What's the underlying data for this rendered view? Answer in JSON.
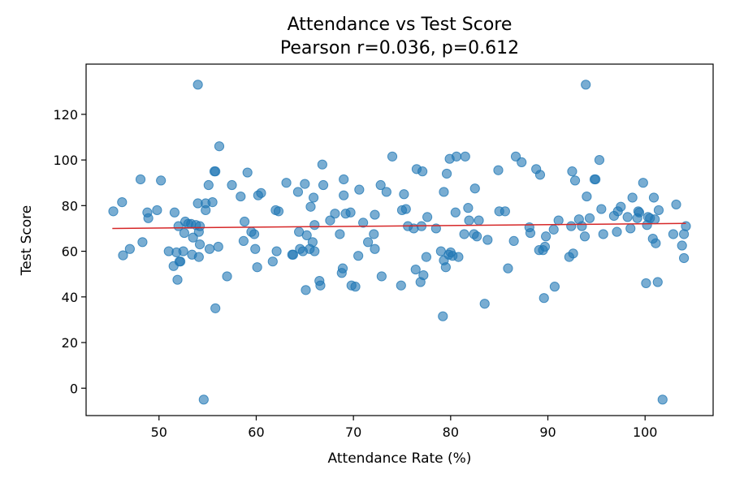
{
  "chart_data": {
    "type": "scatter",
    "title": "Attendance vs Test Score",
    "subtitle": "Pearson r=0.036, p=0.612",
    "xlabel": "Attendance Rate (%)",
    "ylabel": "Test Score",
    "xlim": [
      42.5,
      107.0
    ],
    "ylim": [
      -12,
      142
    ],
    "xticks": [
      50,
      60,
      70,
      80,
      90,
      100
    ],
    "yticks": [
      0,
      20,
      40,
      60,
      80,
      100,
      120
    ],
    "grid": false,
    "legend": "none",
    "point_color": "#1f77b4",
    "trend_color": "#d62728",
    "trendline": {
      "x": [
        45.2,
        104.2
      ],
      "y": [
        70.0,
        72.2
      ]
    },
    "points": [
      {
        "x": 45.3,
        "y": 77.5
      },
      {
        "x": 46.2,
        "y": 81.5
      },
      {
        "x": 46.3,
        "y": 58.2
      },
      {
        "x": 47.0,
        "y": 61.0
      },
      {
        "x": 48.1,
        "y": 91.5
      },
      {
        "x": 48.3,
        "y": 64.0
      },
      {
        "x": 48.8,
        "y": 77.0
      },
      {
        "x": 48.9,
        "y": 74.5
      },
      {
        "x": 49.8,
        "y": 78.0
      },
      {
        "x": 50.2,
        "y": 91.0
      },
      {
        "x": 51.0,
        "y": 60.0
      },
      {
        "x": 51.5,
        "y": 53.5
      },
      {
        "x": 51.6,
        "y": 77.0
      },
      {
        "x": 51.8,
        "y": 59.5
      },
      {
        "x": 51.9,
        "y": 47.5
      },
      {
        "x": 52.0,
        "y": 71.0
      },
      {
        "x": 52.1,
        "y": 55.5
      },
      {
        "x": 52.2,
        "y": 55.5
      },
      {
        "x": 52.5,
        "y": 60.0
      },
      {
        "x": 52.6,
        "y": 68.0
      },
      {
        "x": 52.7,
        "y": 73.0
      },
      {
        "x": 53.0,
        "y": 72.0
      },
      {
        "x": 53.3,
        "y": 72.0
      },
      {
        "x": 53.4,
        "y": 58.5
      },
      {
        "x": 53.5,
        "y": 66.0
      },
      {
        "x": 53.8,
        "y": 71.5
      },
      {
        "x": 54.0,
        "y": 81.0
      },
      {
        "x": 54.0,
        "y": 133.0
      },
      {
        "x": 54.1,
        "y": 68.5
      },
      {
        "x": 54.1,
        "y": 57.5
      },
      {
        "x": 54.2,
        "y": 63.0
      },
      {
        "x": 54.2,
        "y": 71.0
      },
      {
        "x": 54.6,
        "y": -5.0
      },
      {
        "x": 54.8,
        "y": 81.0
      },
      {
        "x": 54.8,
        "y": 78.0
      },
      {
        "x": 55.1,
        "y": 89.0
      },
      {
        "x": 55.2,
        "y": 61.0
      },
      {
        "x": 55.5,
        "y": 81.5
      },
      {
        "x": 55.7,
        "y": 95.0
      },
      {
        "x": 55.8,
        "y": 95.0
      },
      {
        "x": 55.8,
        "y": 35.0
      },
      {
        "x": 56.1,
        "y": 62.0
      },
      {
        "x": 56.2,
        "y": 106.0
      },
      {
        "x": 57.0,
        "y": 49.0
      },
      {
        "x": 57.5,
        "y": 89.0
      },
      {
        "x": 58.4,
        "y": 84.0
      },
      {
        "x": 58.7,
        "y": 64.5
      },
      {
        "x": 58.8,
        "y": 73.0
      },
      {
        "x": 59.1,
        "y": 94.5
      },
      {
        "x": 59.5,
        "y": 68.5
      },
      {
        "x": 59.8,
        "y": 67.5
      },
      {
        "x": 59.9,
        "y": 61.0
      },
      {
        "x": 60.1,
        "y": 53.0
      },
      {
        "x": 60.2,
        "y": 84.5
      },
      {
        "x": 60.5,
        "y": 85.5
      },
      {
        "x": 61.7,
        "y": 55.5
      },
      {
        "x": 62.0,
        "y": 78.0
      },
      {
        "x": 62.1,
        "y": 60.0
      },
      {
        "x": 62.3,
        "y": 77.5
      },
      {
        "x": 63.1,
        "y": 90.0
      },
      {
        "x": 63.7,
        "y": 58.5
      },
      {
        "x": 63.8,
        "y": 58.5
      },
      {
        "x": 64.3,
        "y": 86.0
      },
      {
        "x": 64.4,
        "y": 68.5
      },
      {
        "x": 64.5,
        "y": 61.0
      },
      {
        "x": 64.8,
        "y": 60.0
      },
      {
        "x": 65.0,
        "y": 89.5
      },
      {
        "x": 65.1,
        "y": 43.0
      },
      {
        "x": 65.2,
        "y": 67.0
      },
      {
        "x": 65.5,
        "y": 61.0
      },
      {
        "x": 65.6,
        "y": 79.5
      },
      {
        "x": 65.8,
        "y": 64.0
      },
      {
        "x": 65.9,
        "y": 83.5
      },
      {
        "x": 66.0,
        "y": 71.5
      },
      {
        "x": 66.0,
        "y": 60.0
      },
      {
        "x": 66.5,
        "y": 47.0
      },
      {
        "x": 66.6,
        "y": 45.0
      },
      {
        "x": 66.8,
        "y": 98.0
      },
      {
        "x": 66.9,
        "y": 89.0
      },
      {
        "x": 67.6,
        "y": 73.5
      },
      {
        "x": 68.1,
        "y": 76.5
      },
      {
        "x": 68.6,
        "y": 67.5
      },
      {
        "x": 68.8,
        "y": 50.5
      },
      {
        "x": 68.9,
        "y": 52.5
      },
      {
        "x": 69.0,
        "y": 84.5
      },
      {
        "x": 69.0,
        "y": 91.5
      },
      {
        "x": 69.2,
        "y": 76.5
      },
      {
        "x": 69.7,
        "y": 77.0
      },
      {
        "x": 69.8,
        "y": 45.0
      },
      {
        "x": 70.2,
        "y": 44.5
      },
      {
        "x": 70.5,
        "y": 58.0
      },
      {
        "x": 70.6,
        "y": 87.0
      },
      {
        "x": 71.0,
        "y": 72.5
      },
      {
        "x": 71.5,
        "y": 64.0
      },
      {
        "x": 72.1,
        "y": 67.5
      },
      {
        "x": 72.2,
        "y": 76.0
      },
      {
        "x": 72.2,
        "y": 61.0
      },
      {
        "x": 72.8,
        "y": 89.0
      },
      {
        "x": 72.9,
        "y": 49.0
      },
      {
        "x": 73.4,
        "y": 86.0
      },
      {
        "x": 74.0,
        "y": 101.5
      },
      {
        "x": 74.9,
        "y": 45.0
      },
      {
        "x": 75.0,
        "y": 78.0
      },
      {
        "x": 75.2,
        "y": 85.0
      },
      {
        "x": 75.4,
        "y": 78.5
      },
      {
        "x": 75.6,
        "y": 71.0
      },
      {
        "x": 76.2,
        "y": 70.0
      },
      {
        "x": 76.4,
        "y": 52.0
      },
      {
        "x": 76.5,
        "y": 96.0
      },
      {
        "x": 76.9,
        "y": 46.5
      },
      {
        "x": 77.0,
        "y": 71.0
      },
      {
        "x": 77.1,
        "y": 95.0
      },
      {
        "x": 77.2,
        "y": 49.5
      },
      {
        "x": 77.5,
        "y": 57.5
      },
      {
        "x": 77.6,
        "y": 75.0
      },
      {
        "x": 78.5,
        "y": 70.0
      },
      {
        "x": 79.0,
        "y": 60.0
      },
      {
        "x": 79.2,
        "y": 31.5
      },
      {
        "x": 79.3,
        "y": 56.0
      },
      {
        "x": 79.3,
        "y": 86.0
      },
      {
        "x": 79.5,
        "y": 53.0
      },
      {
        "x": 79.6,
        "y": 94.0
      },
      {
        "x": 79.8,
        "y": 58.5
      },
      {
        "x": 79.9,
        "y": 100.5
      },
      {
        "x": 80.0,
        "y": 59.5
      },
      {
        "x": 80.2,
        "y": 58.0
      },
      {
        "x": 80.5,
        "y": 77.0
      },
      {
        "x": 80.6,
        "y": 101.5
      },
      {
        "x": 80.8,
        "y": 57.5
      },
      {
        "x": 81.4,
        "y": 67.5
      },
      {
        "x": 81.5,
        "y": 101.5
      },
      {
        "x": 81.8,
        "y": 79.0
      },
      {
        "x": 81.9,
        "y": 73.5
      },
      {
        "x": 82.4,
        "y": 67.5
      },
      {
        "x": 82.5,
        "y": 87.5
      },
      {
        "x": 82.7,
        "y": 66.5
      },
      {
        "x": 82.9,
        "y": 73.5
      },
      {
        "x": 83.5,
        "y": 37.0
      },
      {
        "x": 83.8,
        "y": 65.0
      },
      {
        "x": 84.9,
        "y": 95.5
      },
      {
        "x": 85.0,
        "y": 77.5
      },
      {
        "x": 85.6,
        "y": 77.5
      },
      {
        "x": 85.9,
        "y": 52.5
      },
      {
        "x": 86.5,
        "y": 64.5
      },
      {
        "x": 86.7,
        "y": 101.5
      },
      {
        "x": 87.3,
        "y": 99.0
      },
      {
        "x": 88.1,
        "y": 70.5
      },
      {
        "x": 88.2,
        "y": 68.0
      },
      {
        "x": 88.8,
        "y": 96.0
      },
      {
        "x": 89.1,
        "y": 60.5
      },
      {
        "x": 89.2,
        "y": 93.5
      },
      {
        "x": 89.5,
        "y": 60.5
      },
      {
        "x": 89.6,
        "y": 39.5
      },
      {
        "x": 89.7,
        "y": 62.0
      },
      {
        "x": 89.8,
        "y": 66.5
      },
      {
        "x": 90.6,
        "y": 69.5
      },
      {
        "x": 90.7,
        "y": 44.5
      },
      {
        "x": 91.1,
        "y": 73.5
      },
      {
        "x": 92.2,
        "y": 57.5
      },
      {
        "x": 92.4,
        "y": 71.0
      },
      {
        "x": 92.5,
        "y": 95.0
      },
      {
        "x": 92.6,
        "y": 59.0
      },
      {
        "x": 92.8,
        "y": 91.0
      },
      {
        "x": 93.2,
        "y": 74.0
      },
      {
        "x": 93.5,
        "y": 71.0
      },
      {
        "x": 93.8,
        "y": 66.5
      },
      {
        "x": 93.9,
        "y": 133.0
      },
      {
        "x": 94.0,
        "y": 84.0
      },
      {
        "x": 94.3,
        "y": 74.5
      },
      {
        "x": 94.8,
        "y": 91.5
      },
      {
        "x": 94.9,
        "y": 91.5
      },
      {
        "x": 95.3,
        "y": 100.0
      },
      {
        "x": 95.5,
        "y": 78.5
      },
      {
        "x": 95.7,
        "y": 67.5
      },
      {
        "x": 96.8,
        "y": 75.5
      },
      {
        "x": 97.1,
        "y": 68.5
      },
      {
        "x": 97.2,
        "y": 77.5
      },
      {
        "x": 97.5,
        "y": 79.5
      },
      {
        "x": 98.2,
        "y": 75.0
      },
      {
        "x": 98.5,
        "y": 70.0
      },
      {
        "x": 98.7,
        "y": 83.5
      },
      {
        "x": 99.2,
        "y": 74.5
      },
      {
        "x": 99.3,
        "y": 77.5
      },
      {
        "x": 99.4,
        "y": 77.0
      },
      {
        "x": 99.8,
        "y": 90.0
      },
      {
        "x": 100.1,
        "y": 46.0
      },
      {
        "x": 100.2,
        "y": 71.5
      },
      {
        "x": 100.3,
        "y": 75.0
      },
      {
        "x": 100.5,
        "y": 74.5
      },
      {
        "x": 100.8,
        "y": 65.5
      },
      {
        "x": 100.9,
        "y": 83.5
      },
      {
        "x": 101.0,
        "y": 74.0
      },
      {
        "x": 101.1,
        "y": 63.5
      },
      {
        "x": 101.3,
        "y": 46.5
      },
      {
        "x": 101.4,
        "y": 78.0
      },
      {
        "x": 101.8,
        "y": -5.0
      },
      {
        "x": 102.9,
        "y": 67.5
      },
      {
        "x": 103.2,
        "y": 80.5
      },
      {
        "x": 103.8,
        "y": 62.5
      },
      {
        "x": 104.0,
        "y": 67.5
      },
      {
        "x": 104.0,
        "y": 57.0
      },
      {
        "x": 104.2,
        "y": 71.0
      }
    ]
  }
}
